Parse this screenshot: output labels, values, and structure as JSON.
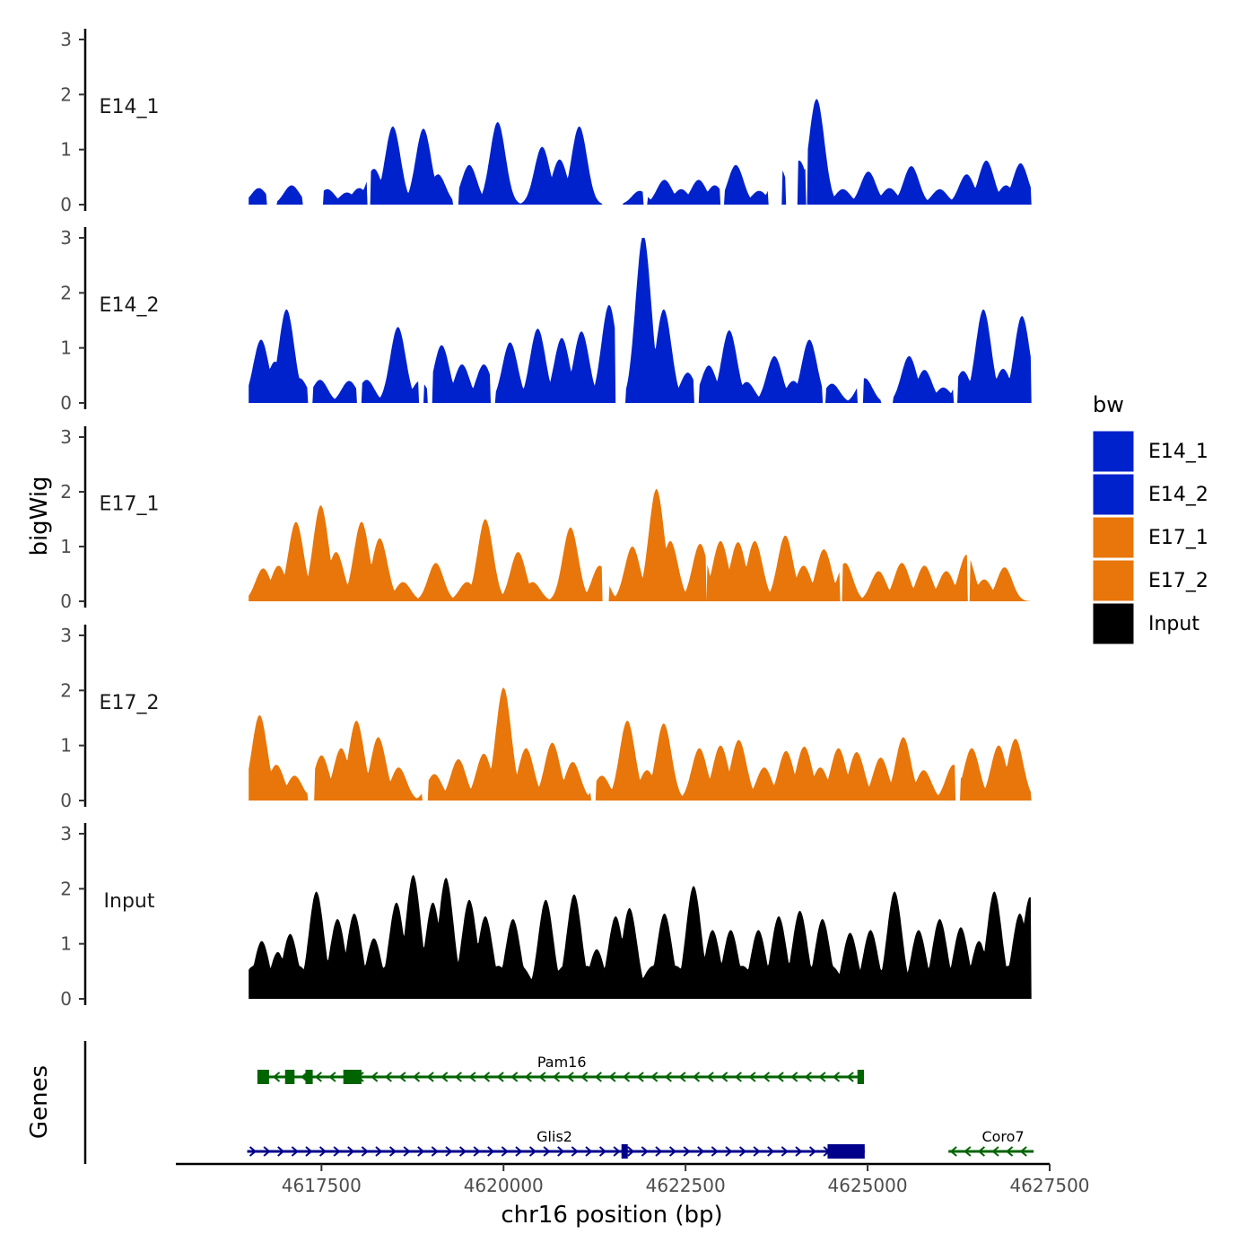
{
  "chart_data": {
    "type": "area",
    "ylabel": "bigWig",
    "gene_track_label": "Genes",
    "xlabel": "chr16 position (bp)",
    "xlim": [
      4615500,
      4627500
    ],
    "x_ticks": [
      4617500,
      4620000,
      4622500,
      4625000,
      4627500
    ],
    "x_tick_labels": [
      "4617500",
      "4620000",
      "4622500",
      "4625000",
      "4627500"
    ],
    "ylim": [
      0,
      3
    ],
    "y_ticks": [
      0,
      1,
      2,
      3
    ],
    "y_tick_labels": [
      "0",
      "1",
      "2",
      "3"
    ],
    "legend": {
      "title": "bw",
      "position": "right",
      "entries": [
        {
          "label": "E14_1",
          "color": "#0022cc"
        },
        {
          "label": "E14_2",
          "color": "#0022cc"
        },
        {
          "label": "E17_1",
          "color": "#e8760a"
        },
        {
          "label": "E17_2",
          "color": "#e8760a"
        },
        {
          "label": "Input",
          "color": "#000000"
        }
      ]
    },
    "tracks": [
      {
        "name": "E14_1",
        "color": "#0022cc",
        "peaks": [
          [
            4616640,
            0.3
          ],
          [
            4617090,
            0.35
          ],
          [
            4617580,
            0.28
          ],
          [
            4617850,
            0.22
          ],
          [
            4618020,
            0.3
          ],
          [
            4618220,
            0.65
          ],
          [
            4618480,
            1.42
          ],
          [
            4618900,
            1.38
          ],
          [
            4619100,
            0.55
          ],
          [
            4619530,
            0.72
          ],
          [
            4619920,
            1.5
          ],
          [
            4620530,
            1.05
          ],
          [
            4620770,
            0.82
          ],
          [
            4621040,
            1.42
          ],
          [
            4621870,
            0.25
          ],
          [
            4622210,
            0.45
          ],
          [
            4622440,
            0.28
          ],
          [
            4622680,
            0.45
          ],
          [
            4622900,
            0.35
          ],
          [
            4623190,
            0.72
          ],
          [
            4623510,
            0.25
          ],
          [
            4623780,
            0.7
          ],
          [
            4624060,
            0.8
          ],
          [
            4624300,
            1.92
          ],
          [
            4624660,
            0.28
          ],
          [
            4625010,
            0.6
          ],
          [
            4625300,
            0.3
          ],
          [
            4625600,
            0.7
          ],
          [
            4625990,
            0.28
          ],
          [
            4626360,
            0.55
          ],
          [
            4626630,
            0.8
          ],
          [
            4626900,
            0.35
          ],
          [
            4627100,
            0.75
          ]
        ],
        "gaps": [
          [
            4616750,
            4616890
          ],
          [
            4617240,
            4617520
          ],
          [
            4618130,
            4618170
          ],
          [
            4619300,
            4619380
          ],
          [
            4621350,
            4621640
          ],
          [
            4621920,
            4621980
          ],
          [
            4622980,
            4623030
          ],
          [
            4623630,
            4623820
          ],
          [
            4623880,
            4624040
          ],
          [
            4624150,
            4624170
          ]
        ]
      },
      {
        "name": "E14_2",
        "color": "#0022cc",
        "peaks": [
          [
            4616670,
            1.15
          ],
          [
            4616860,
            0.75
          ],
          [
            4617020,
            1.7
          ],
          [
            4617200,
            0.45
          ],
          [
            4617480,
            0.42
          ],
          [
            4617880,
            0.4
          ],
          [
            4618120,
            0.42
          ],
          [
            4618550,
            1.38
          ],
          [
            4618850,
            0.4
          ],
          [
            4619150,
            1.05
          ],
          [
            4619430,
            0.7
          ],
          [
            4619730,
            0.7
          ],
          [
            4620090,
            1.1
          ],
          [
            4620470,
            1.35
          ],
          [
            4620800,
            1.18
          ],
          [
            4621070,
            1.3
          ],
          [
            4621450,
            1.78
          ],
          [
            4621920,
            3.05
          ],
          [
            4622200,
            1.7
          ],
          [
            4622530,
            0.55
          ],
          [
            4622820,
            0.68
          ],
          [
            4623100,
            1.32
          ],
          [
            4623340,
            0.38
          ],
          [
            4623720,
            0.85
          ],
          [
            4623980,
            0.4
          ],
          [
            4624200,
            1.15
          ],
          [
            4624510,
            0.35
          ],
          [
            4624960,
            0.45
          ],
          [
            4625570,
            0.85
          ],
          [
            4625780,
            0.6
          ],
          [
            4626040,
            0.28
          ],
          [
            4626310,
            0.58
          ],
          [
            4626590,
            1.7
          ],
          [
            4626860,
            0.62
          ],
          [
            4627120,
            1.58
          ],
          [
            4627220,
            0.38
          ]
        ],
        "gaps": [
          [
            4617310,
            4617380
          ],
          [
            4617980,
            4618050
          ],
          [
            4618830,
            4618910
          ],
          [
            4618960,
            4619020
          ],
          [
            4619820,
            4619890
          ],
          [
            4621530,
            4621680
          ],
          [
            4622610,
            4622680
          ],
          [
            4624380,
            4624430
          ],
          [
            4624860,
            4624940
          ],
          [
            4625180,
            4625350
          ],
          [
            4626180,
            4626240
          ]
        ]
      },
      {
        "name": "E17_1",
        "color": "#e8760a",
        "peaks": [
          [
            4616700,
            0.6
          ],
          [
            4616910,
            0.65
          ],
          [
            4617150,
            1.45
          ],
          [
            4617490,
            1.75
          ],
          [
            4617700,
            0.9
          ],
          [
            4618050,
            1.45
          ],
          [
            4618300,
            1.15
          ],
          [
            4618620,
            0.35
          ],
          [
            4619070,
            0.7
          ],
          [
            4619500,
            0.35
          ],
          [
            4619750,
            1.5
          ],
          [
            4620200,
            0.9
          ],
          [
            4620400,
            0.35
          ],
          [
            4620920,
            1.35
          ],
          [
            4621320,
            0.65
          ],
          [
            4621770,
            1.0
          ],
          [
            4622100,
            2.05
          ],
          [
            4622290,
            1.1
          ],
          [
            4622700,
            1.05
          ],
          [
            4622980,
            1.1
          ],
          [
            4623220,
            1.08
          ],
          [
            4623450,
            1.1
          ],
          [
            4623870,
            1.2
          ],
          [
            4624120,
            0.65
          ],
          [
            4624400,
            0.95
          ],
          [
            4624690,
            0.7
          ],
          [
            4625150,
            0.55
          ],
          [
            4625470,
            0.7
          ],
          [
            4625780,
            0.65
          ],
          [
            4626080,
            0.55
          ],
          [
            4626360,
            0.85
          ],
          [
            4626600,
            0.4
          ],
          [
            4626880,
            0.62
          ]
        ],
        "gaps": [
          [
            4621350,
            4621450
          ],
          [
            4622780,
            4622790
          ],
          [
            4624620,
            4624650
          ],
          [
            4626370,
            4626400
          ]
        ]
      },
      {
        "name": "E17_2",
        "color": "#e8760a",
        "peaks": [
          [
            4616650,
            1.55
          ],
          [
            4616880,
            0.65
          ],
          [
            4617130,
            0.45
          ],
          [
            4617500,
            0.82
          ],
          [
            4617770,
            0.95
          ],
          [
            4617980,
            1.45
          ],
          [
            4618280,
            1.15
          ],
          [
            4618560,
            0.6
          ],
          [
            4619050,
            0.48
          ],
          [
            4619380,
            0.75
          ],
          [
            4619730,
            0.85
          ],
          [
            4620000,
            2.05
          ],
          [
            4620310,
            0.95
          ],
          [
            4620670,
            1.05
          ],
          [
            4620950,
            0.7
          ],
          [
            4621350,
            0.45
          ],
          [
            4621700,
            1.45
          ],
          [
            4621970,
            0.55
          ],
          [
            4622200,
            1.4
          ],
          [
            4622690,
            0.95
          ],
          [
            4622980,
            1.0
          ],
          [
            4623230,
            1.1
          ],
          [
            4623580,
            0.6
          ],
          [
            4623880,
            0.9
          ],
          [
            4624130,
            0.98
          ],
          [
            4624350,
            0.6
          ],
          [
            4624600,
            0.95
          ],
          [
            4624850,
            0.88
          ],
          [
            4625180,
            0.78
          ],
          [
            4625490,
            1.15
          ],
          [
            4625770,
            0.55
          ],
          [
            4626180,
            0.65
          ],
          [
            4626430,
            0.95
          ],
          [
            4626800,
            1.0
          ],
          [
            4627030,
            1.12
          ]
        ],
        "gaps": [
          [
            4617310,
            4617400
          ],
          [
            4618880,
            4618960
          ],
          [
            4621200,
            4621270
          ],
          [
            4626200,
            4626270
          ]
        ]
      },
      {
        "name": "Input",
        "color": "#000000",
        "peaks": [
          [
            4616680,
            1.05
          ],
          [
            4616900,
            0.85
          ],
          [
            4617070,
            1.18
          ],
          [
            4617430,
            1.95
          ],
          [
            4617720,
            1.45
          ],
          [
            4617950,
            1.55
          ],
          [
            4618220,
            1.1
          ],
          [
            4618530,
            1.75
          ],
          [
            4618760,
            2.25
          ],
          [
            4619030,
            1.75
          ],
          [
            4619210,
            2.2
          ],
          [
            4619530,
            1.8
          ],
          [
            4619750,
            1.5
          ],
          [
            4620130,
            1.45
          ],
          [
            4620580,
            1.8
          ],
          [
            4620970,
            1.9
          ],
          [
            4621280,
            0.9
          ],
          [
            4621540,
            1.5
          ],
          [
            4621730,
            1.65
          ],
          [
            4622210,
            1.55
          ],
          [
            4622610,
            2.05
          ],
          [
            4622870,
            1.25
          ],
          [
            4623120,
            1.25
          ],
          [
            4623500,
            1.25
          ],
          [
            4623780,
            1.5
          ],
          [
            4624070,
            1.6
          ],
          [
            4624380,
            1.45
          ],
          [
            4624760,
            1.2
          ],
          [
            4625040,
            1.25
          ],
          [
            4625370,
            1.95
          ],
          [
            4625700,
            1.25
          ],
          [
            4625990,
            1.45
          ],
          [
            4626280,
            1.3
          ],
          [
            4626530,
            1.05
          ],
          [
            4626740,
            1.95
          ],
          [
            4627090,
            1.55
          ],
          [
            4627230,
            1.85
          ]
        ],
        "gaps": []
      }
    ],
    "genes": [
      {
        "name": "Pam16",
        "strand": "-",
        "row": 1,
        "color": "#006400",
        "start": 4616620,
        "end": 4624950,
        "label_x": 4620800,
        "exons": [
          [
            4616620,
            4616780
          ],
          [
            4617000,
            4617130
          ],
          [
            4617280,
            4617380
          ],
          [
            4617800,
            4618050
          ],
          [
            4624860,
            4624950
          ]
        ]
      },
      {
        "name": "Glis2",
        "strand": "+",
        "row": 2,
        "color": "#00008b",
        "start": 4616480,
        "end": 4624960,
        "label_x": 4620700,
        "exons": [
          [
            4621620,
            4621690
          ],
          [
            4624450,
            4624960
          ]
        ]
      },
      {
        "name": "Coro7",
        "strand": "-",
        "row": 2,
        "color": "#006400",
        "start": 4626110,
        "end": 4627280,
        "label_x": 4626860,
        "exons": []
      }
    ]
  }
}
